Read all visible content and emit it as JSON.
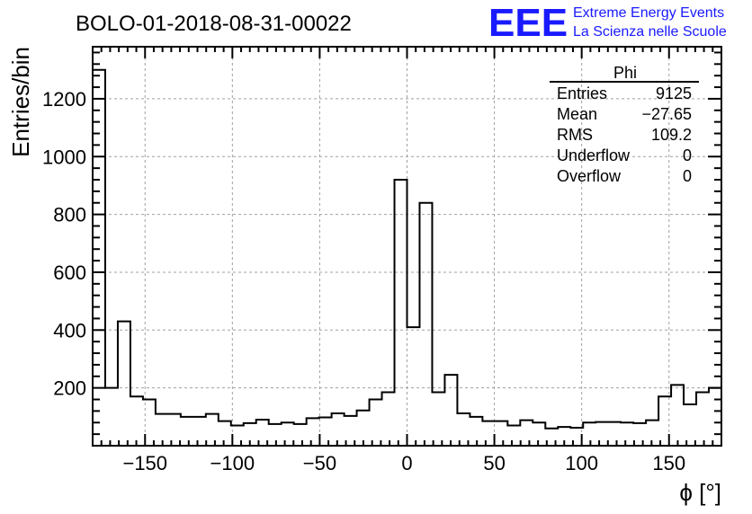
{
  "header": {
    "run_title": "BOLO-01-2018-08-31-00022",
    "logo_letters": "EEE",
    "logo_line1": "Extreme Energy Events",
    "logo_line2": "La Scienza nelle Scuole"
  },
  "stats_box": {
    "name": "Phi",
    "rows": [
      {
        "label": "Entries",
        "value": "9125"
      },
      {
        "label": "Mean",
        "value": "−27.65"
      },
      {
        "label": "RMS",
        "value": "109.2"
      },
      {
        "label": "Underflow",
        "value": "0"
      },
      {
        "label": "Overflow",
        "value": "0"
      }
    ]
  },
  "chart_data": {
    "type": "bar",
    "style": "step-histogram",
    "xlabel": "ϕ [°]",
    "ylabel": "Entries/bin",
    "xlim": [
      -180,
      180
    ],
    "ylim": [
      0,
      1380
    ],
    "bin_width": 7.2,
    "x_ticks": [
      -150,
      -100,
      -50,
      0,
      50,
      100,
      150
    ],
    "x_tick_labels": [
      "−150",
      "−100",
      "−50",
      "0",
      "50",
      "100",
      "150"
    ],
    "y_ticks": [
      200,
      400,
      600,
      800,
      1000,
      1200
    ],
    "y_tick_labels": [
      "200",
      "400",
      "600",
      "800",
      "1000",
      "1200"
    ],
    "grid": true,
    "line_color": "#000000",
    "values": [
      1300,
      200,
      430,
      170,
      160,
      110,
      110,
      100,
      100,
      110,
      85,
      70,
      78,
      90,
      75,
      80,
      75,
      95,
      98,
      112,
      103,
      122,
      160,
      185,
      920,
      410,
      840,
      185,
      245,
      112,
      100,
      85,
      85,
      70,
      88,
      80,
      60,
      65,
      62,
      80,
      82,
      82,
      80,
      78,
      88,
      170,
      210,
      143,
      185,
      200
    ]
  }
}
